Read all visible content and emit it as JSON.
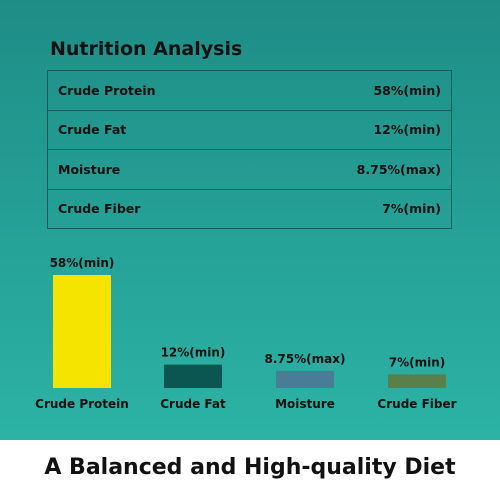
{
  "title": "Nutrition Analysis",
  "table": {
    "rows": [
      {
        "label": "Crude Protein",
        "value": "58%(min)"
      },
      {
        "label": "Crude Fat",
        "value": "12%(min)"
      },
      {
        "label": "Moisture",
        "value": "8.75%(max)"
      },
      {
        "label": "Crude Fiber",
        "value": "7%(min)"
      }
    ]
  },
  "chart_data": {
    "type": "bar",
    "categories": [
      "Crude Protein",
      "Crude Fat",
      "Moisture",
      "Crude Fiber"
    ],
    "values": [
      58,
      12,
      8.75,
      7
    ],
    "data_labels": [
      "58%(min)",
      "12%(min)",
      "8.75%(max)",
      "7%(min)"
    ],
    "colors": [
      "#f5e400",
      "#0b5650",
      "#4a7d95",
      "#5b7f4b"
    ],
    "ylim": [
      0,
      58
    ],
    "grid": false
  },
  "footer": "A Balanced and High-quality Diet",
  "colors": {
    "background_top": "#1e8d86",
    "background_bottom": "#2cb3a5",
    "table_border": "#0f5e57"
  }
}
